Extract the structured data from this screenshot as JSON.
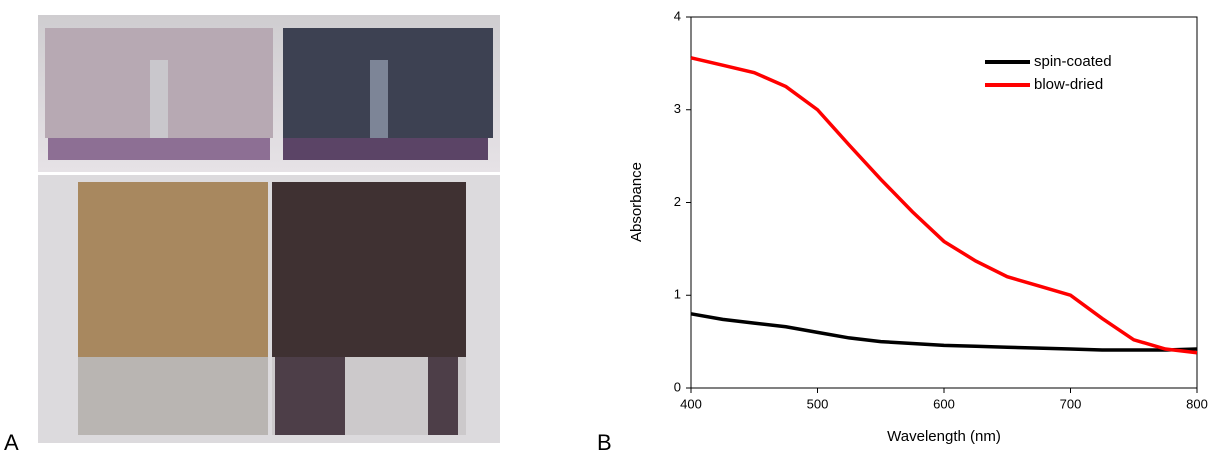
{
  "panel_labels": [
    "A",
    "B"
  ],
  "chart_data": {
    "type": "line",
    "xlabel": "Wavelength (nm)",
    "ylabel": "Absorbance",
    "x": [
      400,
      425,
      450,
      475,
      500,
      525,
      550,
      575,
      600,
      625,
      650,
      675,
      700,
      725,
      750,
      775,
      800
    ],
    "series": [
      {
        "name": "spin-coated",
        "color": "#000000",
        "values": [
          0.8,
          0.74,
          0.7,
          0.66,
          0.6,
          0.54,
          0.5,
          0.48,
          0.46,
          0.45,
          0.44,
          0.43,
          0.42,
          0.41,
          0.41,
          0.41,
          0.42
        ]
      },
      {
        "name": "blow-dried",
        "color": "#ff0000",
        "values": [
          3.56,
          3.48,
          3.4,
          3.25,
          3.0,
          2.62,
          2.25,
          1.9,
          1.58,
          1.37,
          1.2,
          1.1,
          1.0,
          0.75,
          0.52,
          0.42,
          0.38
        ]
      }
    ],
    "xlim": [
      400,
      800
    ],
    "xticks": [
      400,
      500,
      600,
      700,
      800
    ],
    "ylim": [
      0,
      4
    ],
    "yticks": [
      0,
      1,
      2,
      3,
      4
    ],
    "legend": "upper right"
  }
}
